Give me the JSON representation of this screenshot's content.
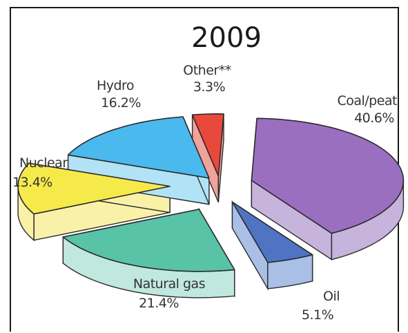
{
  "chart_data": {
    "type": "pie",
    "title": "2009",
    "exploded": true,
    "three_d": true,
    "slices": [
      {
        "label": "Coal/peat",
        "value_text": "40.6%",
        "value": 40.6,
        "color": "#9b6fc0",
        "side_color": "#c7b4dc"
      },
      {
        "label": "Oil",
        "value_text": "5.1%",
        "value": 5.1,
        "color": "#4f74c4",
        "side_color": "#a9bfe6"
      },
      {
        "label": "Natural gas",
        "value_text": "21.4%",
        "value": 21.4,
        "color": "#58c3a6",
        "side_color": "#c1e8df"
      },
      {
        "label": "Nuclear",
        "value_text": "13.4%",
        "value": 13.4,
        "color": "#f6ea4b",
        "side_color": "#f9f1a8"
      },
      {
        "label": "Hydro",
        "value_text": "16.2%",
        "value": 16.2,
        "color": "#4ab9ed",
        "side_color": "#b2e2f6"
      },
      {
        "label": "Other**",
        "value_text": "3.3%",
        "value": 3.3,
        "color": "#e9493d",
        "side_color": "#f1a29b"
      }
    ]
  }
}
